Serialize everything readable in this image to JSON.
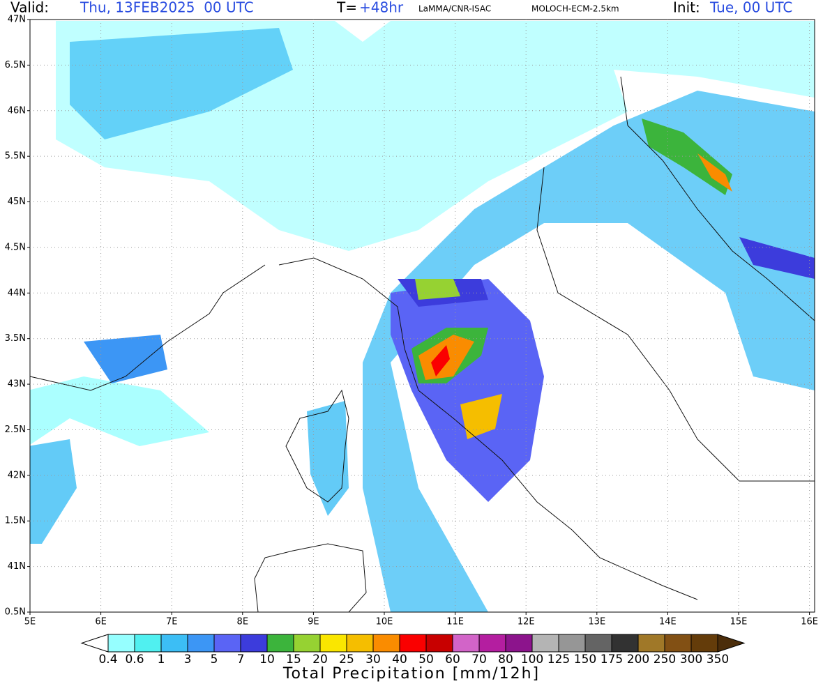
{
  "header": {
    "valid_label": "Valid:",
    "valid_time": "Thu, 13FEB2025  00 UTC",
    "lead_label": "T=",
    "lead_time": "+48hr",
    "source": "LaMMA/CNR-ISAC",
    "model": "MOLOCH-ECM-2.5km",
    "init_label": "Init:",
    "init_time": "Tue, 00 UTC"
  },
  "map": {
    "lat_labels": [
      "47N",
      "6.5N",
      "46N",
      "5.5N",
      "45N",
      "4.5N",
      "44N",
      "3.5N",
      "43N",
      "2.5N",
      "42N",
      "1.5N",
      "41N",
      "0.5N"
    ],
    "lon_labels": [
      "5E",
      "6E",
      "7E",
      "8E",
      "9E",
      "10E",
      "11E",
      "12E",
      "13E",
      "14E",
      "15E",
      "16E"
    ]
  },
  "colorbar": {
    "levels": [
      "0.4",
      "0.6",
      "1",
      "3",
      "5",
      "7",
      "10",
      "15",
      "20",
      "25",
      "30",
      "40",
      "50",
      "60",
      "70",
      "80",
      "100",
      "125",
      "150",
      "175",
      "200",
      "250",
      "300",
      "350"
    ],
    "colors": [
      "#96ffff",
      "#50f0f0",
      "#3cbef5",
      "#3c96f5",
      "#5a64f5",
      "#3c3cdc",
      "#3cb43c",
      "#96d232",
      "#fae600",
      "#f5be00",
      "#fa8c00",
      "#fa0000",
      "#c80000",
      "#d264c8",
      "#b41ea0",
      "#8c148c",
      "#b4b4b4",
      "#969696",
      "#646464",
      "#323232",
      "#a07828",
      "#825014",
      "#643c0a"
    ],
    "under_color": "#ffffff",
    "over_color": "#4b2d0a",
    "title": "Total Precipitation [mm/12h]"
  }
}
